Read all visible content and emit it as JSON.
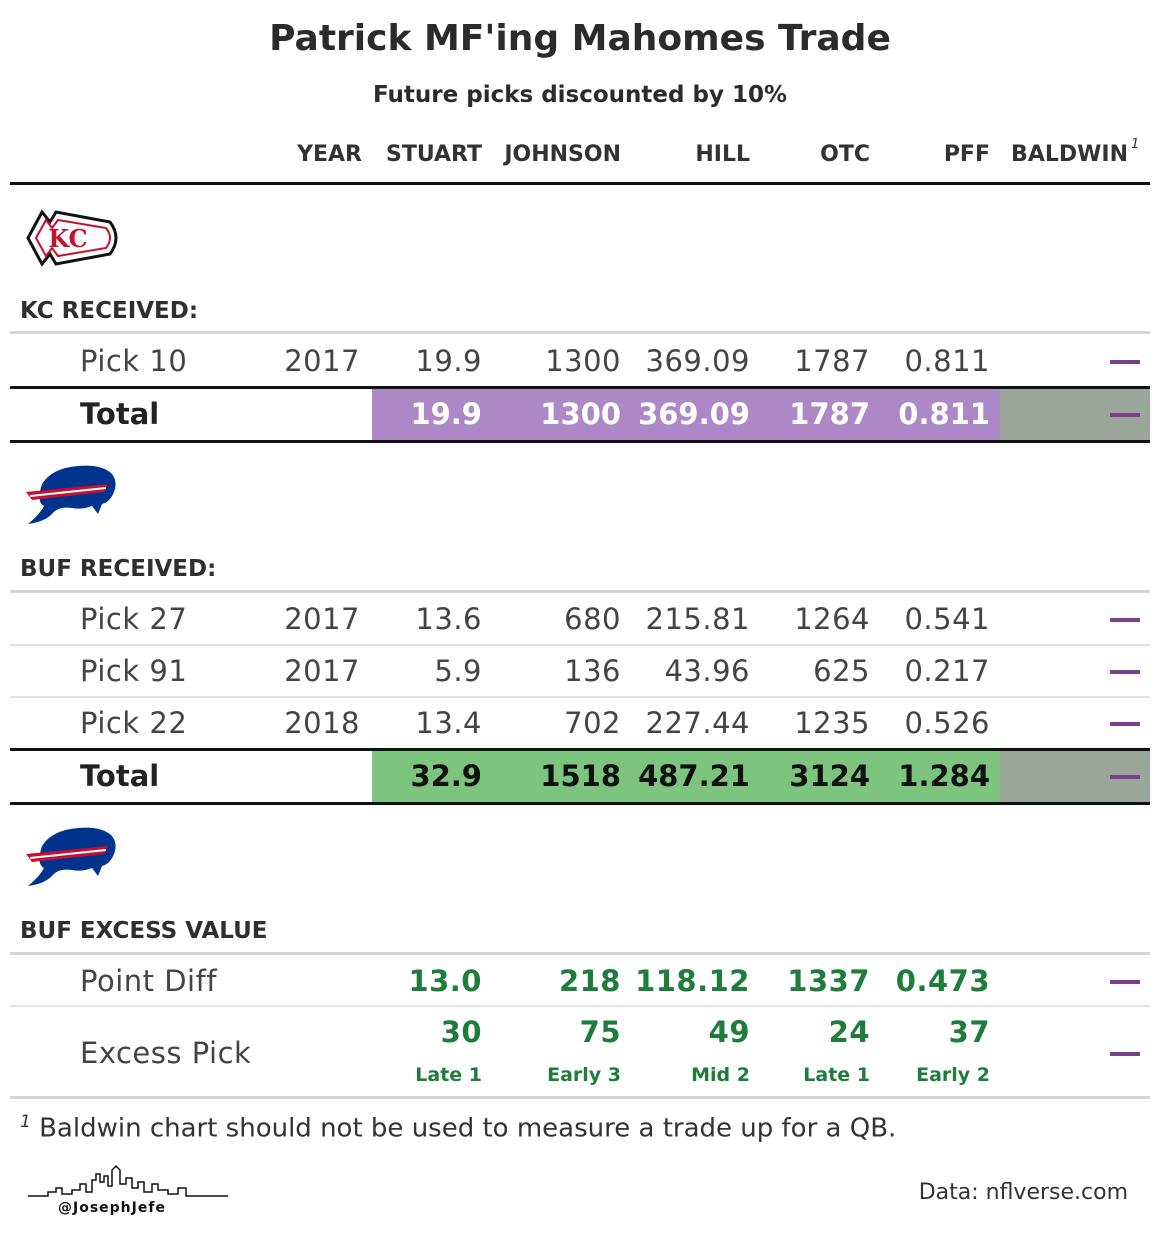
{
  "title": "Patrick MF'ing Mahomes Trade",
  "subtitle": "Future picks discounted by 10%",
  "columns": [
    "YEAR",
    "STUART",
    "JOHNSON",
    "HILL",
    "OTC",
    "PFF",
    "BALDWIN"
  ],
  "baldwin_footnote_mark": "1",
  "kc": {
    "section_label": "KC RECEIVED:",
    "logo": "chiefs-logo",
    "rows": [
      {
        "label": "Pick 10",
        "year": "2017",
        "stuart": "19.9",
        "johnson": "1300",
        "hill": "369.09",
        "otc": "1787",
        "pff": "0.811"
      }
    ],
    "total": {
      "label": "Total",
      "stuart": "19.9",
      "johnson": "1300",
      "hill": "369.09",
      "otc": "1787",
      "pff": "0.811"
    }
  },
  "buf": {
    "section_label": "BUF RECEIVED:",
    "logo": "bills-logo",
    "rows": [
      {
        "label": "Pick 27",
        "year": "2017",
        "stuart": "13.6",
        "johnson": "680",
        "hill": "215.81",
        "otc": "1264",
        "pff": "0.541"
      },
      {
        "label": "Pick 91",
        "year": "2017",
        "stuart": "5.9",
        "johnson": "136",
        "hill": "43.96",
        "otc": "625",
        "pff": "0.217"
      },
      {
        "label": "Pick 22",
        "year": "2018",
        "stuart": "13.4",
        "johnson": "702",
        "hill": "227.44",
        "otc": "1235",
        "pff": "0.526"
      }
    ],
    "total": {
      "label": "Total",
      "stuart": "32.9",
      "johnson": "1518",
      "hill": "487.21",
      "otc": "3124",
      "pff": "1.284"
    }
  },
  "excess": {
    "section_label": "BUF EXCESS VALUE",
    "logo": "bills-logo",
    "point_diff": {
      "label": "Point Diff",
      "stuart": "13.0",
      "johnson": "218",
      "hill": "118.12",
      "otc": "1337",
      "pff": "0.473"
    },
    "excess_pick": {
      "label": "Excess Pick",
      "stuart": "30",
      "johnson": "75",
      "hill": "49",
      "otc": "24",
      "pff": "37",
      "stuart_tier": "Late 1",
      "johnson_tier": "Early 3",
      "hill_tier": "Mid 2",
      "otc_tier": "Late 1",
      "pff_tier": "Early 2"
    }
  },
  "footnote": {
    "mark": "1",
    "text": "Baldwin chart should not be used to measure a trade up for a QB."
  },
  "source": "Data: nflverse.com",
  "handle": "@JosephJefe",
  "colors": {
    "kc_total": "#ac88c6",
    "buf_total": "#7dc47f",
    "baldwin_total": "#9aa69a",
    "dash": "#7b3f8c",
    "positive": "#1e7d3a"
  }
}
